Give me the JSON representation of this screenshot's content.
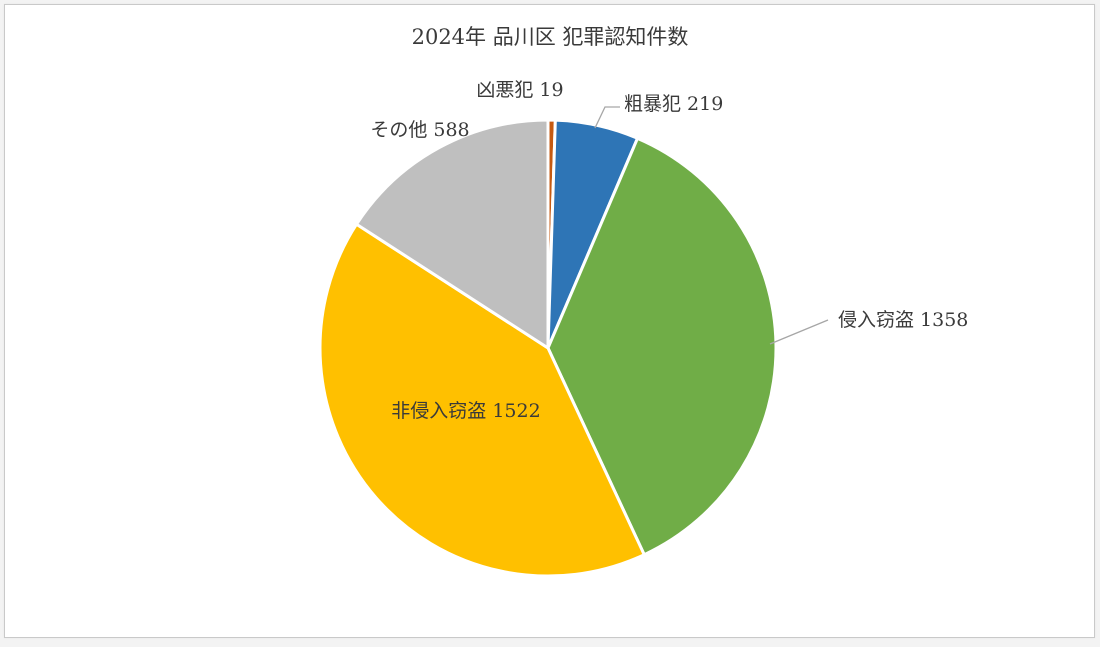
{
  "chart_data": {
    "type": "pie",
    "title": "2024年 品川区 犯罪認知件数",
    "slices": [
      {
        "label": "凶悪犯",
        "value": 19,
        "color": "#c55a11"
      },
      {
        "label": "粗暴犯",
        "value": 219,
        "color": "#2e75b6"
      },
      {
        "label": "侵入窃盗",
        "value": 1358,
        "color": "#70ad47"
      },
      {
        "label": "非侵入窃盗",
        "value": 1522,
        "color": "#ffc000"
      },
      {
        "label": "その他",
        "value": 588,
        "color": "#bfbfbf"
      }
    ],
    "data_labels": "category and value",
    "legend": "none"
  }
}
